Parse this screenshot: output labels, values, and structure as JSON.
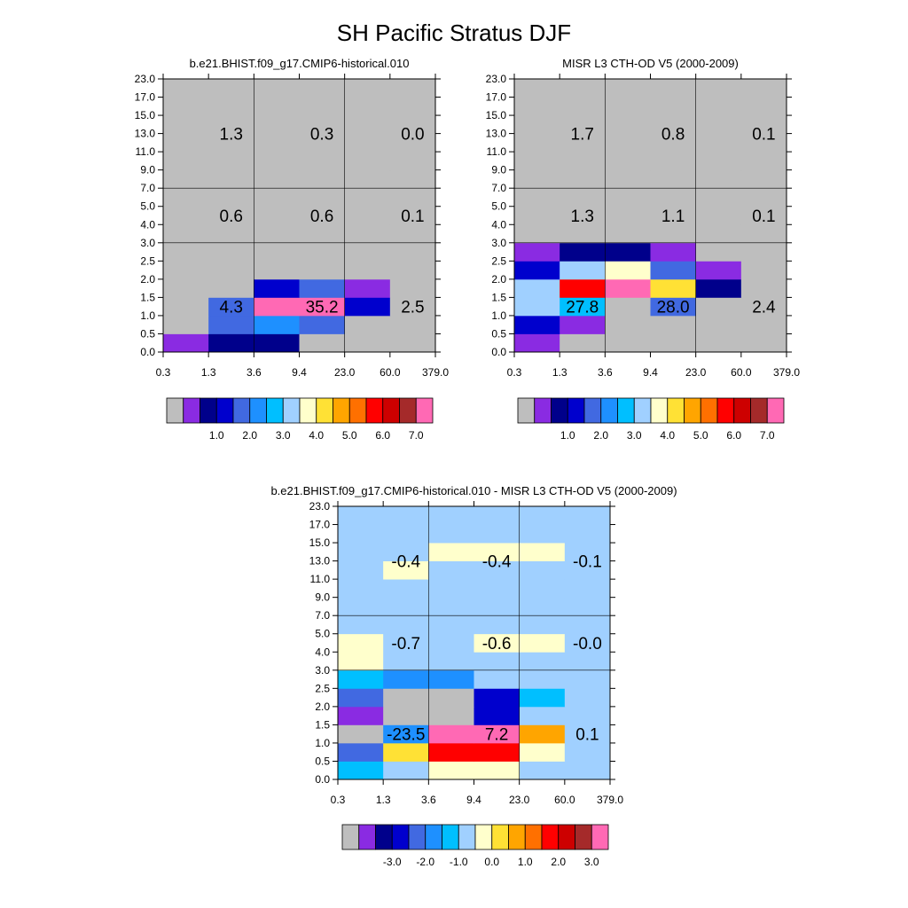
{
  "title": "SH Pacific Stratus DJF",
  "axis": {
    "x_ticks": [
      "0.3",
      "1.3",
      "3.6",
      "9.4",
      "23.0",
      "60.0",
      "379.0"
    ],
    "y_ticks": [
      "0.0",
      "0.5",
      "1.0",
      "1.5",
      "2.0",
      "2.5",
      "3.0",
      "4.0",
      "5.0",
      "7.0",
      "9.0",
      "11.0",
      "13.0",
      "15.0",
      "17.0",
      "23.0"
    ]
  },
  "colormap": [
    "#BEBEBE",
    "#8A2BE2",
    "#00008B",
    "#0000CD",
    "#4169E1",
    "#1E90FF",
    "#00BFFF",
    "#A0D0FF",
    "#FFFFCC",
    "#FFE135",
    "#FFA500",
    "#FF7000",
    "#FF0000",
    "#CD0000",
    "#A52A2A",
    "#FF69B4"
  ],
  "chart_data": [
    {
      "type": "heatmap",
      "title": "b.e21.BHIST.f09_g17.CMIP6-historical.010",
      "colorbar_labels": [
        "1.0",
        "2.0",
        "3.0",
        "4.0",
        "5.0",
        "6.0",
        "7.0"
      ],
      "cells": [
        [
          1,
          2,
          2,
          0,
          0,
          0
        ],
        [
          0,
          4,
          5,
          4,
          0,
          0
        ],
        [
          0,
          4,
          15,
          15,
          3,
          0
        ],
        [
          0,
          0,
          3,
          4,
          1,
          0
        ],
        [
          0,
          0,
          0,
          0,
          0,
          0
        ],
        [
          0,
          0,
          0,
          0,
          0,
          0
        ],
        [
          0,
          0,
          0,
          0,
          0,
          0
        ],
        [
          0,
          0,
          0,
          0,
          0,
          0
        ],
        [
          0,
          0,
          0,
          0,
          0,
          0
        ],
        [
          0,
          0,
          0,
          0,
          0,
          0
        ],
        [
          0,
          0,
          0,
          0,
          0,
          0
        ],
        [
          0,
          0,
          0,
          0,
          0,
          0
        ],
        [
          0,
          0,
          0,
          0,
          0,
          0
        ],
        [
          0,
          0,
          0,
          0,
          0,
          0
        ],
        [
          0,
          0,
          0,
          0,
          0,
          0
        ]
      ],
      "annotations": [
        {
          "text": "4.3",
          "x": 1.5,
          "y": 2.5
        },
        {
          "text": "35.2",
          "x": 3.5,
          "y": 2.5
        },
        {
          "text": "2.5",
          "x": 5.5,
          "y": 2.5
        },
        {
          "text": "0.6",
          "x": 1.5,
          "y": 7.5
        },
        {
          "text": "0.6",
          "x": 3.5,
          "y": 7.5
        },
        {
          "text": "0.1",
          "x": 5.5,
          "y": 7.5
        },
        {
          "text": "1.3",
          "x": 1.5,
          "y": 12
        },
        {
          "text": "0.3",
          "x": 3.5,
          "y": 12
        },
        {
          "text": "0.0",
          "x": 5.5,
          "y": 12
        }
      ]
    },
    {
      "type": "heatmap",
      "title": "MISR L3 CTH-OD V5 (2000-2009)",
      "colorbar_labels": [
        "1.0",
        "2.0",
        "3.0",
        "4.0",
        "5.0",
        "6.0",
        "7.0"
      ],
      "cells": [
        [
          1,
          0,
          0,
          0,
          0,
          0
        ],
        [
          3,
          1,
          0,
          0,
          0,
          0
        ],
        [
          7,
          6,
          0,
          4,
          0,
          0
        ],
        [
          7,
          12,
          15,
          9,
          2,
          0
        ],
        [
          3,
          7,
          8,
          4,
          1,
          0
        ],
        [
          1,
          2,
          2,
          1,
          0,
          0
        ],
        [
          0,
          0,
          0,
          0,
          0,
          0
        ],
        [
          0,
          0,
          0,
          0,
          0,
          0
        ],
        [
          0,
          0,
          0,
          0,
          0,
          0
        ],
        [
          0,
          0,
          0,
          0,
          0,
          0
        ],
        [
          0,
          0,
          0,
          0,
          0,
          0
        ],
        [
          0,
          0,
          0,
          0,
          0,
          0
        ],
        [
          0,
          0,
          0,
          0,
          0,
          0
        ],
        [
          0,
          0,
          0,
          0,
          0,
          0
        ],
        [
          0,
          0,
          0,
          0,
          0,
          0
        ]
      ],
      "annotations": [
        {
          "text": "27.8",
          "x": 1.5,
          "y": 2.5
        },
        {
          "text": "28.0",
          "x": 3.5,
          "y": 2.5
        },
        {
          "text": "2.4",
          "x": 5.5,
          "y": 2.5
        },
        {
          "text": "1.3",
          "x": 1.5,
          "y": 7.5
        },
        {
          "text": "1.1",
          "x": 3.5,
          "y": 7.5
        },
        {
          "text": "0.1",
          "x": 5.5,
          "y": 7.5
        },
        {
          "text": "1.7",
          "x": 1.5,
          "y": 12
        },
        {
          "text": "0.8",
          "x": 3.5,
          "y": 12
        },
        {
          "text": "0.1",
          "x": 5.5,
          "y": 12
        }
      ]
    },
    {
      "type": "heatmap",
      "title": "b.e21.BHIST.f09_g17.CMIP6-historical.010 - MISR L3 CTH-OD V5 (2000-2009)",
      "colorbar_labels": [
        "-3.0",
        "-2.0",
        "-1.0",
        "0.0",
        "1.0",
        "2.0",
        "3.0"
      ],
      "cells": [
        [
          6,
          7,
          8,
          8,
          7,
          7
        ],
        [
          4,
          9,
          12,
          12,
          8,
          7
        ],
        [
          0,
          5,
          15,
          15,
          10,
          7
        ],
        [
          1,
          0,
          0,
          3,
          7,
          7
        ],
        [
          4,
          0,
          0,
          3,
          6,
          7
        ],
        [
          6,
          5,
          5,
          7,
          7,
          7
        ],
        [
          8,
          7,
          7,
          7,
          7,
          7
        ],
        [
          8,
          7,
          7,
          8,
          8,
          7
        ],
        [
          7,
          7,
          7,
          7,
          7,
          7
        ],
        [
          7,
          7,
          7,
          7,
          7,
          7
        ],
        [
          7,
          7,
          7,
          7,
          7,
          7
        ],
        [
          7,
          8,
          7,
          7,
          7,
          7
        ],
        [
          7,
          7,
          8,
          8,
          8,
          7
        ],
        [
          7,
          7,
          7,
          7,
          7,
          7
        ],
        [
          7,
          7,
          7,
          7,
          7,
          7
        ]
      ],
      "annotations": [
        {
          "text": "-23.5",
          "x": 1.5,
          "y": 2.5
        },
        {
          "text": "7.2",
          "x": 3.5,
          "y": 2.5
        },
        {
          "text": "0.1",
          "x": 5.5,
          "y": 2.5
        },
        {
          "text": "-0.7",
          "x": 1.5,
          "y": 7.5
        },
        {
          "text": "-0.6",
          "x": 3.5,
          "y": 7.5
        },
        {
          "text": "-0.0",
          "x": 5.5,
          "y": 7.5
        },
        {
          "text": "-0.4",
          "x": 1.5,
          "y": 12
        },
        {
          "text": "-0.4",
          "x": 3.5,
          "y": 12
        },
        {
          "text": "-0.1",
          "x": 5.5,
          "y": 12
        }
      ]
    }
  ]
}
